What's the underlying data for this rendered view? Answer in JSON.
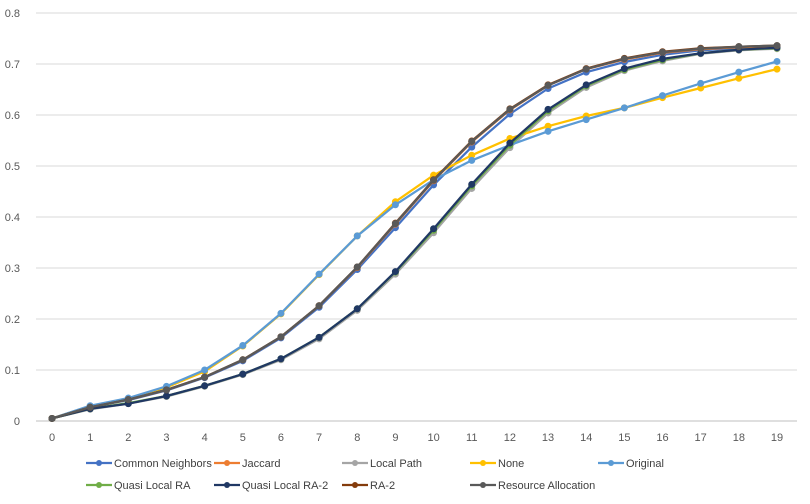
{
  "chart_data": {
    "type": "line",
    "title": "",
    "xlabel": "",
    "ylabel": "",
    "ylim": [
      0,
      0.8
    ],
    "yticks": [
      "0",
      "0.1",
      "0.2",
      "0.3",
      "0.4",
      "0.5",
      "0.6",
      "0.7",
      "0.8"
    ],
    "x": [
      0,
      1,
      2,
      3,
      4,
      5,
      6,
      7,
      8,
      9,
      10,
      11,
      12,
      13,
      14,
      15,
      16,
      17,
      18,
      19
    ],
    "grid": "horizontal",
    "legend_position": "bottom",
    "series": [
      {
        "name": "Common Neighbors",
        "color": "#4472C4",
        "values": [
          0.005,
          0.027,
          0.041,
          0.06,
          0.085,
          0.118,
          0.163,
          0.223,
          0.297,
          0.379,
          0.463,
          0.537,
          0.602,
          0.652,
          0.684,
          0.704,
          0.718,
          0.727,
          0.731,
          0.733
        ]
      },
      {
        "name": "Jaccard",
        "color": "#ED7D31",
        "values": [
          0.005,
          0.027,
          0.042,
          0.061,
          0.086,
          0.12,
          0.165,
          0.226,
          0.301,
          0.386,
          0.471,
          0.547,
          0.61,
          0.658,
          0.69,
          0.709,
          0.722,
          0.729,
          0.733,
          0.735
        ]
      },
      {
        "name": "Local Path",
        "color": "#A5A5A5",
        "values": [
          0.005,
          0.023,
          0.034,
          0.048,
          0.068,
          0.091,
          0.12,
          0.161,
          0.217,
          0.288,
          0.369,
          0.456,
          0.536,
          0.604,
          0.654,
          0.687,
          0.706,
          0.72,
          0.727,
          0.73
        ]
      },
      {
        "name": "None",
        "color": "#FFC000",
        "values": [
          0.005,
          0.029,
          0.044,
          0.066,
          0.097,
          0.147,
          0.21,
          0.287,
          0.363,
          0.43,
          0.482,
          0.521,
          0.554,
          0.578,
          0.598,
          0.614,
          0.634,
          0.653,
          0.672,
          0.69
        ]
      },
      {
        "name": "Original",
        "color": "#5B9BD5",
        "values": [
          0.005,
          0.03,
          0.045,
          0.068,
          0.1,
          0.148,
          0.211,
          0.288,
          0.363,
          0.424,
          0.473,
          0.511,
          0.541,
          0.568,
          0.591,
          0.614,
          0.638,
          0.662,
          0.684,
          0.705
        ]
      },
      {
        "name": "Quasi Local RA",
        "color": "#70AD47",
        "values": [
          0.005,
          0.024,
          0.035,
          0.049,
          0.069,
          0.092,
          0.122,
          0.164,
          0.22,
          0.292,
          0.374,
          0.461,
          0.541,
          0.608,
          0.657,
          0.689,
          0.708,
          0.721,
          0.728,
          0.731
        ]
      },
      {
        "name": "Quasi Local RA-2",
        "color": "#203864",
        "values": [
          0.005,
          0.024,
          0.034,
          0.049,
          0.069,
          0.092,
          0.122,
          0.164,
          0.22,
          0.293,
          0.377,
          0.464,
          0.545,
          0.611,
          0.659,
          0.691,
          0.71,
          0.721,
          0.728,
          0.732
        ]
      },
      {
        "name": "RA-2",
        "color": "#843C0C",
        "values": [
          0.005,
          0.027,
          0.042,
          0.061,
          0.086,
          0.12,
          0.165,
          0.226,
          0.302,
          0.388,
          0.473,
          0.549,
          0.612,
          0.659,
          0.691,
          0.711,
          0.724,
          0.731,
          0.734,
          0.736
        ]
      },
      {
        "name": "Resource Allocation",
        "color": "#595959",
        "values": [
          0.005,
          0.027,
          0.042,
          0.061,
          0.086,
          0.12,
          0.165,
          0.226,
          0.302,
          0.387,
          0.472,
          0.548,
          0.611,
          0.658,
          0.69,
          0.71,
          0.723,
          0.73,
          0.734,
          0.736
        ]
      }
    ]
  }
}
